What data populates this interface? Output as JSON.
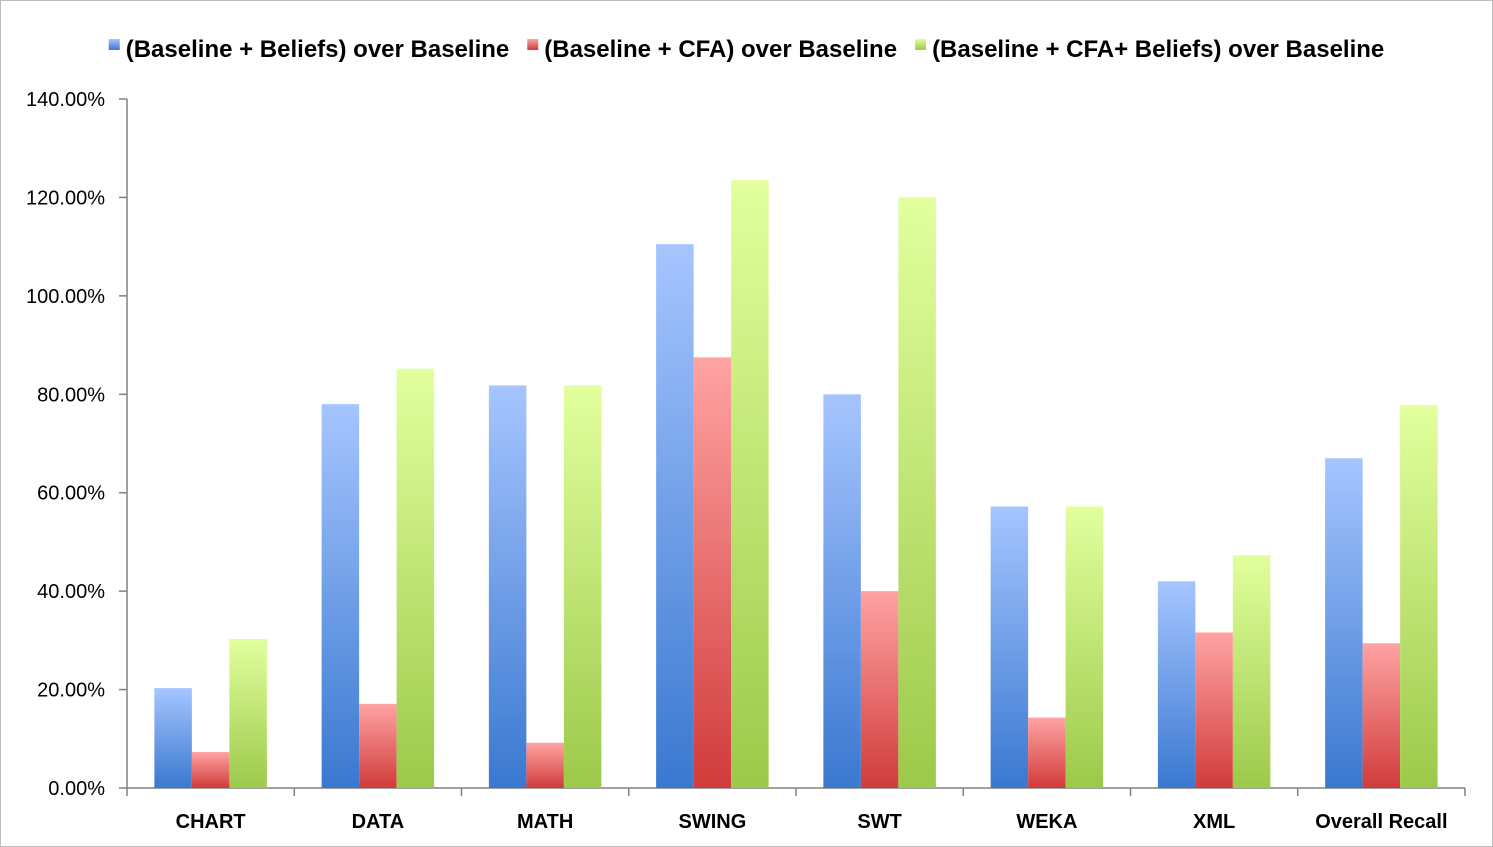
{
  "chart_data": {
    "type": "bar",
    "categories": [
      "CHART",
      "DATA",
      "MATH",
      "SWING",
      "SWT",
      "WEKA",
      "XML",
      "Overall Recall"
    ],
    "series": [
      {
        "name": "(Baseline + Beliefs) over Baseline",
        "color_top": "#a6c5ff",
        "color_bottom": "#3a78d0",
        "values": [
          20.3,
          78.0,
          81.8,
          110.5,
          80.0,
          57.2,
          42.0,
          67.0
        ]
      },
      {
        "name": "(Baseline + CFA) over Baseline",
        "color_top": "#ffa3a3",
        "color_bottom": "#d13b3b",
        "values": [
          7.3,
          17.1,
          9.2,
          87.5,
          40.0,
          14.3,
          31.6,
          29.4
        ]
      },
      {
        "name": "(Baseline + CFA+ Beliefs) over Baseline",
        "color_top": "#e2ff9e",
        "color_bottom": "#9cc94a",
        "values": [
          30.3,
          85.2,
          81.8,
          123.5,
          120.0,
          57.2,
          47.3,
          77.8
        ]
      }
    ],
    "ylim": [
      0,
      140
    ],
    "yticks": [
      "0.00%",
      "20.00%",
      "40.00%",
      "60.00%",
      "80.00%",
      "100.00%",
      "120.00%",
      "140.00%"
    ],
    "ytick_values": [
      0,
      20,
      40,
      60,
      80,
      100,
      120,
      140
    ],
    "legend_position": "top",
    "grid": false
  }
}
